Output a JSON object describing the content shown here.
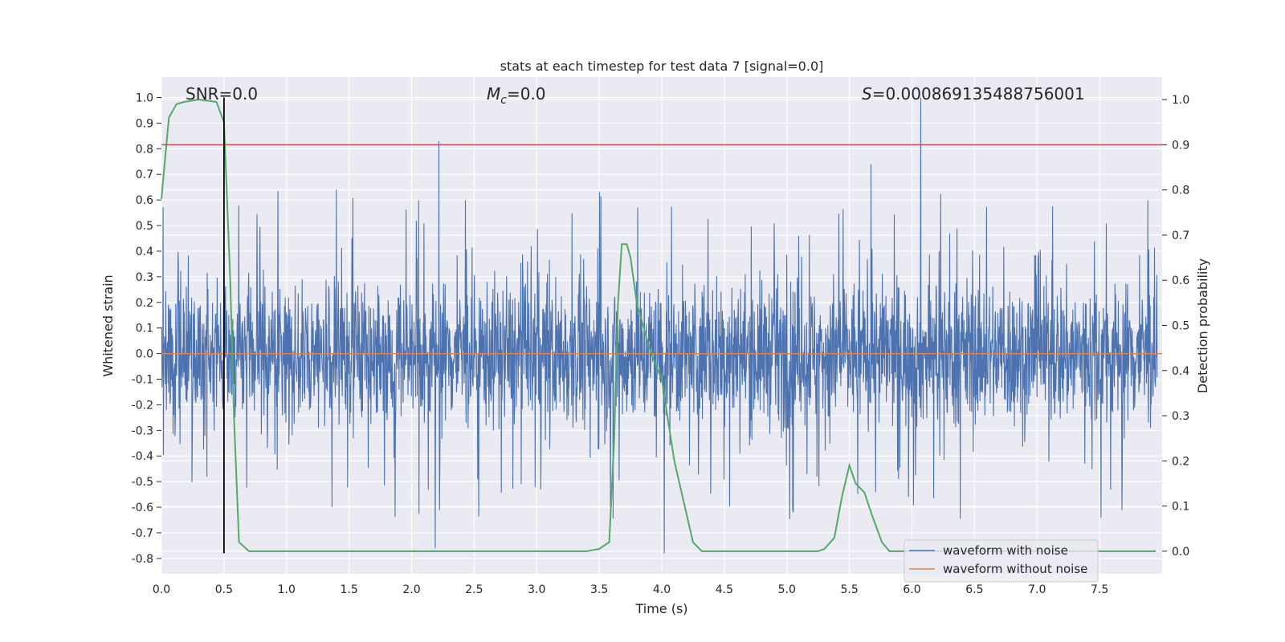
{
  "chart_data": {
    "type": "line",
    "title": "stats at each timestep for test data 7 [signal=0.0]",
    "xlabel": "Time (s)",
    "ylabel": "Whitened strain",
    "ylabel_right": "Detection probability",
    "xlim": [
      0.0,
      8.0
    ],
    "ylim": [
      -0.86,
      1.08
    ],
    "ylim_right": [
      -0.05,
      1.05
    ],
    "x_ticks": [
      "0.0",
      "0.5",
      "1.0",
      "1.5",
      "2.0",
      "2.5",
      "3.0",
      "3.5",
      "4.0",
      "4.5",
      "5.0",
      "5.5",
      "6.0",
      "6.5",
      "7.0",
      "7.5"
    ],
    "y_ticks": [
      "1.0",
      "0.9",
      "0.8",
      "0.7",
      "0.6",
      "0.5",
      "0.4",
      "0.3",
      "0.2",
      "0.1",
      "0.0",
      "-0.1",
      "-0.2",
      "-0.3",
      "-0.4",
      "-0.5",
      "-0.6",
      "-0.7",
      "-0.8"
    ],
    "y_ticks_right": [
      "1.0",
      "0.9",
      "0.8",
      "0.7",
      "0.6",
      "0.5",
      "0.4",
      "0.3",
      "0.2",
      "0.1",
      "0.0"
    ],
    "grid": true,
    "legend_position": "bottom-right",
    "annotations": {
      "snr_label": "SNR=0.0",
      "mc_symbol": "M",
      "mc_subscript": "c",
      "mc_value": "=0.0",
      "s_symbol": "S",
      "s_value": "=0.000869135488756001"
    },
    "series": [
      {
        "name": "waveform with noise",
        "color": "#4c72b0",
        "axis": "left",
        "envelope": "dense noise, mostly within about -0.4 to 0.45",
        "spikes": [
          {
            "x": 2.23,
            "y": 0.83
          },
          {
            "x": 2.2,
            "y": -0.76
          },
          {
            "x": 4.04,
            "y": -0.78
          },
          {
            "x": 6.1,
            "y": 1.0
          },
          {
            "x": 5.7,
            "y": 0.74
          },
          {
            "x": 7.55,
            "y": -0.64
          }
        ]
      },
      {
        "name": "waveform without noise",
        "color": "#dd8452",
        "axis": "left",
        "x": [
          0.0,
          8.0
        ],
        "y": [
          0.0,
          0.0
        ]
      },
      {
        "color": "#55a868",
        "axis": "right",
        "x": [
          0.0,
          0.06,
          0.12,
          0.18,
          0.3,
          0.44,
          0.5,
          0.55,
          0.58,
          0.62,
          0.7,
          1.0,
          2.0,
          3.0,
          3.4,
          3.5,
          3.58,
          3.62,
          3.65,
          3.68,
          3.72,
          3.75,
          3.8,
          3.9,
          4.0,
          4.1,
          4.2,
          4.25,
          4.32,
          4.5,
          5.0,
          5.25,
          5.3,
          5.38,
          5.44,
          5.5,
          5.55,
          5.62,
          5.68,
          5.76,
          5.82,
          6.0,
          7.0,
          7.95
        ],
        "y": [
          0.78,
          0.96,
          0.99,
          0.995,
          1.0,
          0.995,
          0.95,
          0.6,
          0.3,
          0.02,
          0.0,
          0.0,
          0.0,
          0.0,
          0.0,
          0.005,
          0.02,
          0.25,
          0.55,
          0.68,
          0.68,
          0.65,
          0.55,
          0.45,
          0.38,
          0.2,
          0.08,
          0.02,
          0.0,
          0.0,
          0.0,
          0.0,
          0.005,
          0.03,
          0.12,
          0.19,
          0.15,
          0.13,
          0.08,
          0.02,
          0.0,
          0.0,
          0.0,
          0.0
        ]
      },
      {
        "color": "#c44e52",
        "axis": "right",
        "x": [
          0.0,
          8.0
        ],
        "y": [
          0.9,
          0.9
        ]
      },
      {
        "color": "#000000",
        "axis": "left",
        "x": [
          0.5,
          0.5
        ],
        "y": [
          1.0,
          -0.78
        ]
      }
    ]
  }
}
